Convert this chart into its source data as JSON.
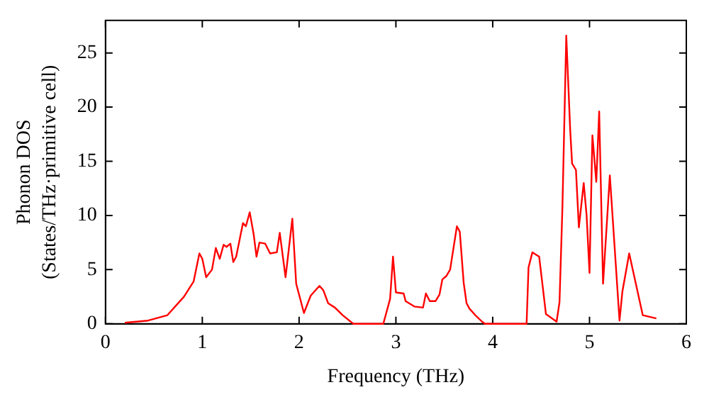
{
  "chart_data": {
    "type": "line",
    "xlabel": "Frequency (THz)",
    "ylabel": "Phonon DOS\n(States/THz·primitive cell)",
    "xlim": [
      0,
      6
    ],
    "xticks": [
      0,
      1,
      2,
      3,
      4,
      5,
      6
    ],
    "ylim": [
      0,
      28
    ],
    "yticks": [
      0,
      5,
      10,
      15,
      20,
      25
    ],
    "grid": false,
    "legend": false,
    "marker": "none",
    "line_style": "solid",
    "series": [
      {
        "color": "#ff0000",
        "x": [
          0.2,
          0.44,
          0.64,
          0.81,
          0.91,
          0.97,
          1.0,
          1.04,
          1.1,
          1.14,
          1.18,
          1.22,
          1.25,
          1.29,
          1.32,
          1.35,
          1.42,
          1.45,
          1.49,
          1.53,
          1.56,
          1.59,
          1.65,
          1.7,
          1.77,
          1.8,
          1.86,
          1.93,
          1.97,
          2.05,
          2.12,
          2.21,
          2.25,
          2.3,
          2.37,
          2.45,
          2.56,
          2.87,
          2.94,
          2.97,
          3.0,
          3.08,
          3.1,
          3.19,
          3.28,
          3.31,
          3.35,
          3.41,
          3.45,
          3.48,
          3.52,
          3.56,
          3.63,
          3.66,
          3.7,
          3.73,
          3.76,
          3.82,
          3.89,
          3.92,
          4.35,
          4.37,
          4.41,
          4.48,
          4.55,
          4.66,
          4.69,
          4.72,
          4.76,
          4.8,
          4.82,
          4.86,
          4.89,
          4.94,
          4.97,
          5.0,
          5.03,
          5.07,
          5.1,
          5.14,
          5.21,
          5.31,
          5.34,
          5.41,
          5.55,
          5.69
        ],
        "values": [
          0.1,
          0.3,
          0.8,
          2.5,
          3.9,
          6.5,
          6.0,
          4.3,
          5.0,
          7.0,
          6.0,
          7.3,
          7.1,
          7.4,
          5.7,
          6.2,
          9.3,
          9.0,
          10.3,
          8.3,
          6.2,
          7.5,
          7.4,
          6.5,
          6.6,
          8.4,
          4.3,
          9.7,
          3.7,
          1.0,
          2.6,
          3.5,
          3.1,
          1.9,
          1.5,
          0.8,
          0,
          0,
          2.3,
          6.2,
          2.9,
          2.8,
          2.1,
          1.6,
          1.5,
          2.8,
          2.1,
          2.1,
          2.7,
          4.1,
          4.4,
          5.0,
          9.0,
          8.5,
          3.8,
          1.9,
          1.4,
          0.8,
          0.2,
          0,
          0,
          5.2,
          6.6,
          6.2,
          0.9,
          0.2,
          2.0,
          10.7,
          26.6,
          18,
          14.8,
          14.2,
          8.9,
          13,
          10,
          4.7,
          17.4,
          13.1,
          19.6,
          3.7,
          13.7,
          0.3,
          3.0,
          6.5,
          0.8,
          0.5
        ]
      }
    ]
  }
}
